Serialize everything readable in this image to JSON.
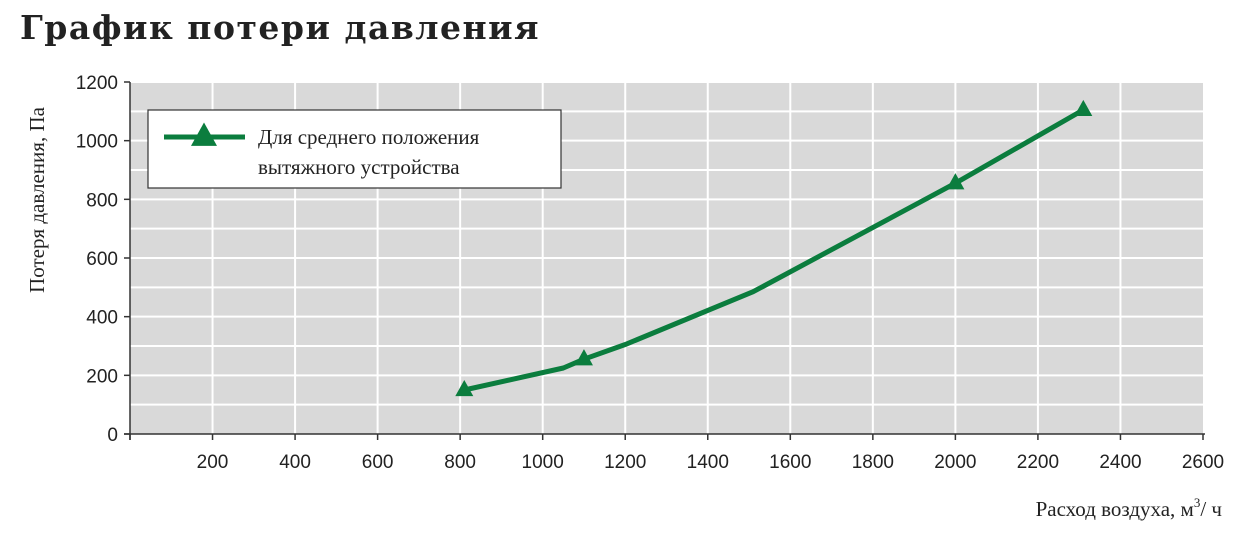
{
  "chart_data": {
    "type": "line",
    "title": "График потери давления",
    "xlabel": "Расход воздуха, м³/ ч",
    "xlabel_base": "Расход воздуха, м",
    "xlabel_sup": "3",
    "xlabel_tail": "/ ч",
    "ylabel": "Потеря давления, Па",
    "xlim": [
      0,
      2600
    ],
    "ylim": [
      0,
      1200
    ],
    "xticks": [
      200,
      400,
      600,
      800,
      1000,
      1200,
      1400,
      1600,
      1800,
      2000,
      2200,
      2400,
      2600
    ],
    "yticks": [
      0,
      200,
      400,
      600,
      800,
      1000,
      1200
    ],
    "grid": true,
    "legend_position": "top-left",
    "colors": {
      "series": "#0b7d3e",
      "plot_bg": "#d9d9d9",
      "grid": "#ffffff"
    },
    "series": [
      {
        "name": "Для среднего положения вытяжного устройства",
        "legend_lines": [
          "Для среднего положения",
          "вытяжного устройства"
        ],
        "marker": "triangle",
        "x": [
          810,
          1050,
          1100,
          1200,
          1510,
          2000,
          2310
        ],
        "y": [
          150,
          225,
          255,
          305,
          485,
          855,
          1105
        ],
        "marker_x": [
          810,
          1100,
          2000,
          2310
        ],
        "marker_y": [
          150,
          255,
          855,
          1105
        ]
      }
    ]
  }
}
